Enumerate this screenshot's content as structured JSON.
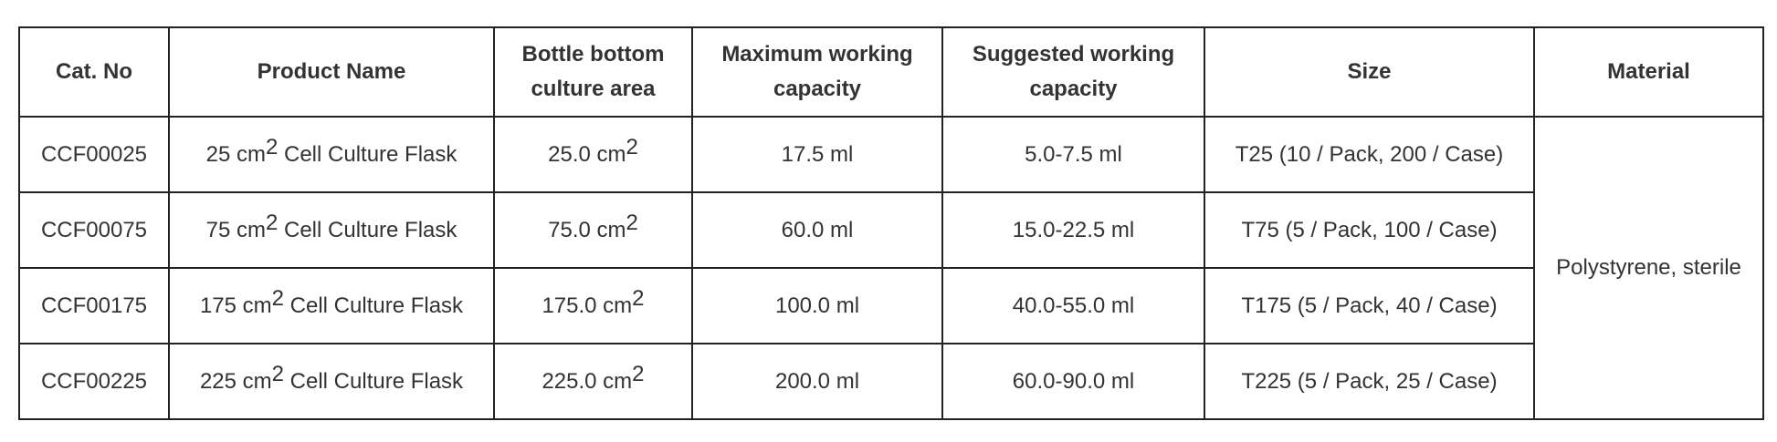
{
  "table": {
    "headers": [
      "Cat. No",
      "Product Name",
      "Bottle bottom culture area",
      "Maximum working capacity",
      "Suggested working capacity",
      "Size",
      "Material"
    ],
    "rows": [
      {
        "cat_no": "CCF00025",
        "name_num": "25 cm",
        "name_sup": "2",
        "name_rest": " Cell Culture Flask",
        "area_num": "25.0 cm",
        "area_sup": "2",
        "max": "17.5 ml",
        "suggested": "5.0-7.5 ml",
        "size": "T25 (10 / Pack, 200 / Case)"
      },
      {
        "cat_no": "CCF00075",
        "name_num": "75 cm",
        "name_sup": "2",
        "name_rest": " Cell Culture Flask",
        "area_num": "75.0 cm",
        "area_sup": "2",
        "max": "60.0 ml",
        "suggested": "15.0-22.5 ml",
        "size": "T75 (5 / Pack, 100 / Case)"
      },
      {
        "cat_no": "CCF00175",
        "name_num": "175 cm",
        "name_sup": "2",
        "name_rest": " Cell Culture Flask",
        "area_num": "175.0 cm",
        "area_sup": "2",
        "max": "100.0 ml",
        "suggested": "40.0-55.0 ml",
        "size": "T175 (5 / Pack, 40 / Case)"
      },
      {
        "cat_no": "CCF00225",
        "name_num": "225 cm",
        "name_sup": "2",
        "name_rest": " Cell Culture Flask",
        "area_num": "225.0 cm",
        "area_sup": "2",
        "max": "200.0 ml",
        "suggested": "60.0-90.0 ml",
        "size": "T225 (5 / Pack, 25 / Case)"
      }
    ],
    "material": "Polystyrene, sterile"
  }
}
